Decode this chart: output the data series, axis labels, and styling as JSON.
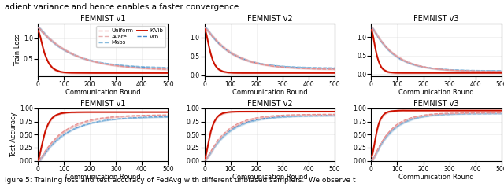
{
  "titles": [
    "FEMNIST v1",
    "FEMNIST v2",
    "FEMNIST v3"
  ],
  "xlabel": "Communication Round",
  "ylabel_top": "Train Loss",
  "ylabel_bottom": "Test Accuracy",
  "legend_entries": [
    {
      "label": "Uniform",
      "color": "#e8a0a0",
      "ls": "dashed",
      "lw": 1.0
    },
    {
      "label": "Avare",
      "color": "#e8a0a0",
      "ls": "dashed",
      "lw": 1.0
    },
    {
      "label": "Mabs",
      "color": "#88bbdd",
      "ls": "dashed",
      "lw": 1.0
    },
    {
      "label": "K-Vib",
      "color": "#cc1100",
      "ls": "solid",
      "lw": 1.4
    },
    {
      "label": "Vrb",
      "color": "#4488cc",
      "ls": "dashed",
      "lw": 1.0
    }
  ],
  "top_text": "adient variance and hence enables a faster convergence.",
  "bottom_text": "igure 5: Training loss and test accuracy of FedAvg with different unbiased samplers.  We observe t",
  "fig_width": 6.4,
  "fig_height": 2.38,
  "dpi": 100
}
